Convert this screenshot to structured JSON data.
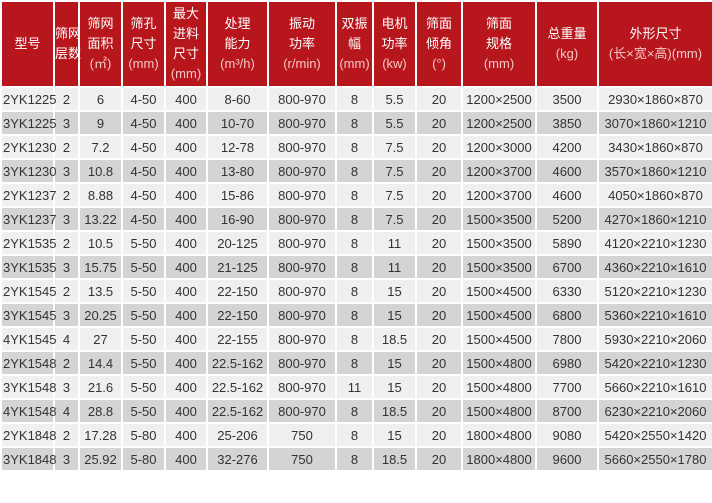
{
  "colors": {
    "header_bg": "#b7171c",
    "header_text": "#ffffff",
    "header_unit": "#f7c6c6",
    "row_light": "#efefef",
    "row_dark": "#d4d4d4"
  },
  "table": {
    "headers": [
      {
        "lines": [
          "型号"
        ],
        "unit": ""
      },
      {
        "lines": [
          "筛网",
          "层数"
        ],
        "unit": ""
      },
      {
        "lines": [
          "筛网",
          "面积"
        ],
        "unit": "(㎡)"
      },
      {
        "lines": [
          "筛孔",
          "尺寸"
        ],
        "unit": "(mm)"
      },
      {
        "lines": [
          "最大",
          "进料",
          "尺寸"
        ],
        "unit": "(mm)"
      },
      {
        "lines": [
          "处理",
          "能力"
        ],
        "unit": "(m³/h)"
      },
      {
        "lines": [
          "振动",
          "功率"
        ],
        "unit": "(r/min)"
      },
      {
        "lines": [
          "双振",
          "幅"
        ],
        "unit": "(mm)"
      },
      {
        "lines": [
          "电机",
          "功率"
        ],
        "unit": "(kw)"
      },
      {
        "lines": [
          "筛面",
          "倾角"
        ],
        "unit": "(°)"
      },
      {
        "lines": [
          "筛面",
          "规格"
        ],
        "unit": "(mm)"
      },
      {
        "lines": [
          "总重量"
        ],
        "unit": "(kg)"
      },
      {
        "lines": [
          "外形尺寸"
        ],
        "unit": "(长×宽×高)(mm)"
      }
    ],
    "rows": [
      [
        "2YK1225",
        "2",
        "6",
        "4-50",
        "400",
        "8-60",
        "800-970",
        "8",
        "5.5",
        "20",
        "1200×2500",
        "3500",
        "2930×1860×870"
      ],
      [
        "3YK1225",
        "3",
        "9",
        "4-50",
        "400",
        "10-70",
        "800-970",
        "8",
        "5.5",
        "20",
        "1200×2500",
        "3850",
        "3070×1860×1210"
      ],
      [
        "2YK1230",
        "2",
        "7.2",
        "4-50",
        "400",
        "12-78",
        "800-970",
        "8",
        "7.5",
        "20",
        "1200×3000",
        "4200",
        "3430×1860×870"
      ],
      [
        "3YK1230",
        "3",
        "10.8",
        "4-50",
        "400",
        "13-80",
        "800-970",
        "8",
        "7.5",
        "20",
        "1200×3700",
        "4600",
        "3570×1860×1210"
      ],
      [
        "2YK1237",
        "2",
        "8.88",
        "4-50",
        "400",
        "15-86",
        "800-970",
        "8",
        "7.5",
        "20",
        "1200×3700",
        "4600",
        "4050×1860×870"
      ],
      [
        "3YK1237",
        "3",
        "13.22",
        "4-50",
        "400",
        "16-90",
        "800-970",
        "8",
        "7.5",
        "20",
        "1500×3500",
        "5200",
        "4270×1860×1210"
      ],
      [
        "2YK1535",
        "2",
        "10.5",
        "5-50",
        "400",
        "20-125",
        "800-970",
        "8",
        "11",
        "20",
        "1500×3500",
        "5890",
        "4120×2210×1230"
      ],
      [
        "3YK1535",
        "3",
        "15.75",
        "5-50",
        "400",
        "21-125",
        "800-970",
        "8",
        "11",
        "20",
        "1500×3500",
        "6700",
        "4360×2210×1610"
      ],
      [
        "2YK1545",
        "2",
        "13.5",
        "5-50",
        "400",
        "22-150",
        "800-970",
        "8",
        "15",
        "20",
        "1500×4500",
        "6330",
        "5120×2210×1230"
      ],
      [
        "3YK1545",
        "3",
        "20.25",
        "5-50",
        "400",
        "22-150",
        "800-970",
        "8",
        "15",
        "20",
        "1500×4500",
        "6800",
        "5360×2210×1610"
      ],
      [
        "4YK1545",
        "4",
        "27",
        "5-50",
        "400",
        "22-155",
        "800-970",
        "8",
        "18.5",
        "20",
        "1500×4500",
        "7800",
        "5930×2210×2060"
      ],
      [
        "2YK1548",
        "2",
        "14.4",
        "5-50",
        "400",
        "22.5-162",
        "800-970",
        "8",
        "15",
        "20",
        "1500×4800",
        "6980",
        "5420×2210×1230"
      ],
      [
        "3YK1548",
        "3",
        "21.6",
        "5-50",
        "400",
        "22.5-162",
        "800-970",
        "11",
        "15",
        "20",
        "1500×4800",
        "7700",
        "5660×2210×1610"
      ],
      [
        "4YK1548",
        "4",
        "28.8",
        "5-50",
        "400",
        "22.5-162",
        "800-970",
        "8",
        "18.5",
        "20",
        "1500×4800",
        "8700",
        "6230×2210×2060"
      ],
      [
        "2YK1848",
        "2",
        "17.28",
        "5-80",
        "400",
        "25-206",
        "750",
        "8",
        "15",
        "20",
        "1800×4800",
        "9080",
        "5420×2550×1420"
      ],
      [
        "3YK1848",
        "3",
        "25.92",
        "5-80",
        "400",
        "32-276",
        "750",
        "8",
        "18.5",
        "20",
        "1800×4800",
        "9600",
        "5660×2550×1780"
      ]
    ]
  }
}
